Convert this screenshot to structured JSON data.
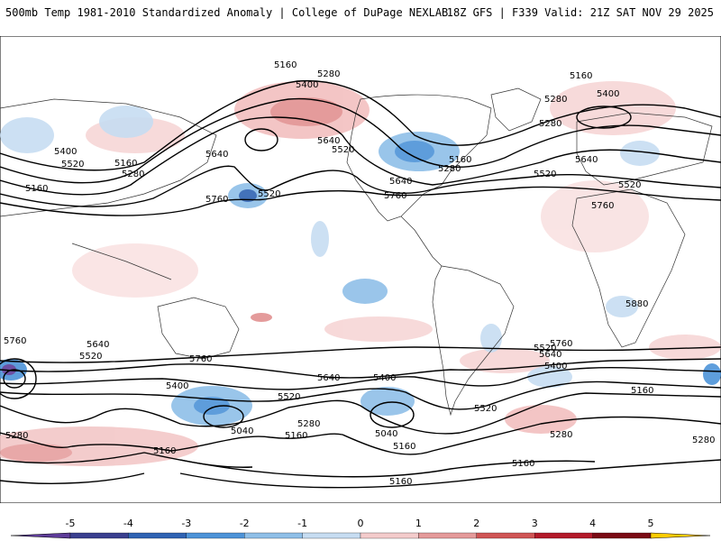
{
  "header": {
    "title_left": "500mb Temp 1981-2010 Standardized Anomaly | College of DuPage NEXLAB",
    "title_right": "18Z GFS | F339 Valid: 21Z SAT NOV 29 2025"
  },
  "contour_labels": [
    "5160",
    "5280",
    "5400",
    "5160",
    "5280",
    "5400",
    "5520",
    "5640",
    "5760",
    "5520",
    "5160",
    "5280",
    "5640",
    "5520",
    "5280",
    "5160",
    "5640",
    "5760",
    "5520",
    "5400",
    "5160",
    "5280",
    "5640",
    "5520",
    "5760",
    "5880",
    "5760",
    "5640",
    "5520",
    "5760",
    "5640",
    "5400",
    "5520",
    "5040",
    "5280",
    "5160",
    "5400",
    "5520",
    "5040",
    "5160",
    "5520",
    "5760",
    "5640",
    "5400",
    "5160",
    "5280",
    "5280",
    "5160",
    "5160",
    "5160",
    "5280"
  ],
  "colorbar": {
    "ticks": [
      "-5",
      "-4",
      "-3",
      "-2",
      "-1",
      "0",
      "1",
      "2",
      "3",
      "4",
      "5"
    ],
    "colors": [
      "#3a3f8f",
      "#2f63b3",
      "#4d93d8",
      "#8fbfe8",
      "#c7ddf2",
      "#ffffff",
      "#f4cccc",
      "#e59a9a",
      "#d05555",
      "#b31a2a",
      "#7a0a14"
    ],
    "end_low": "#5e3c99",
    "end_high": "#ffcc00"
  }
}
